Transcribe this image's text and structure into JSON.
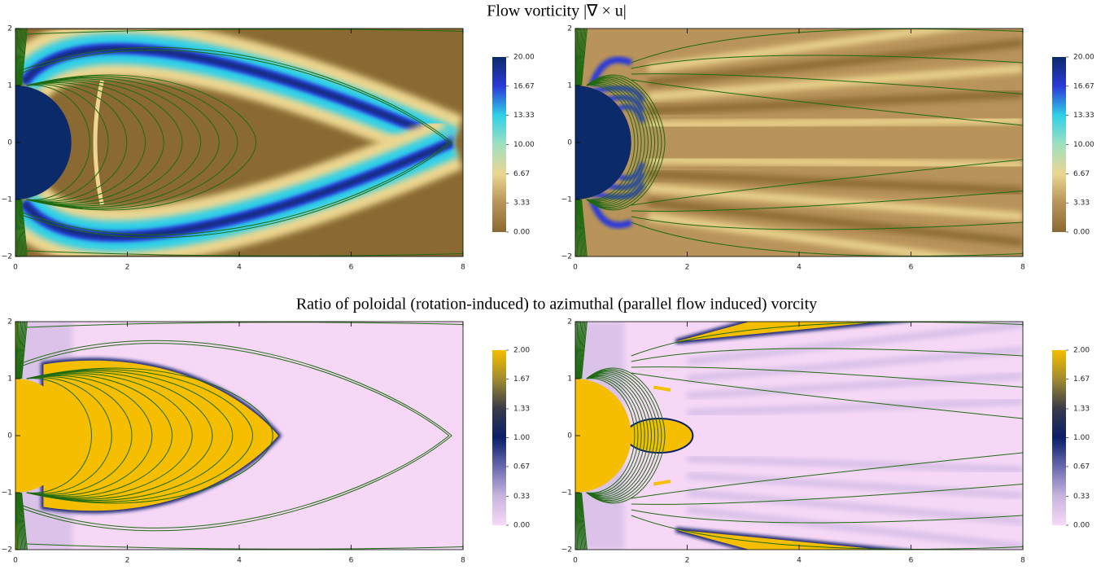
{
  "chart_data": [
    {
      "type": "heatmap",
      "title": "Flow vorticity |∇ × u|",
      "xlim": [
        0,
        8
      ],
      "xticks": [
        0,
        2,
        4,
        6,
        8
      ],
      "ylim": [
        -2,
        2
      ],
      "yticks": [
        {
          "value": -2,
          "label": "−2"
        },
        {
          "value": -1,
          "label": "−1"
        },
        0,
        1,
        2
      ],
      "clim": [
        0,
        20
      ],
      "cticks": [
        {
          "value": 0,
          "label": "0.00"
        },
        3.33,
        6.67,
        {
          "value": 10,
          "label": "10.00"
        },
        13.33,
        16.67,
        {
          "value": 20,
          "label": "20.00"
        }
      ],
      "colormap": [
        "#8a6a32",
        "#b8935a",
        "#ecd690",
        "#9fe0c0",
        "#2ed0e8",
        "#2a3ad8",
        "#0a2a6a"
      ]
    },
    {
      "type": "heatmap",
      "title": "Ratio of poloidal (rotation-induced) to azimuthal (parallel flow induced) vorcity",
      "xlim": [
        0,
        8
      ],
      "xticks": [
        0,
        2,
        4,
        6,
        8
      ],
      "ylim": [
        -2,
        2
      ],
      "yticks": [
        {
          "value": -2,
          "label": "−2"
        },
        {
          "value": -1,
          "label": "−1"
        },
        0,
        1,
        2
      ],
      "clim": [
        0,
        2
      ],
      "cticks": [
        {
          "value": 0,
          "label": "0.00"
        },
        0.33,
        0.67,
        {
          "value": 1,
          "label": "1.00"
        },
        1.33,
        1.67,
        {
          "value": 2,
          "label": "2.00"
        }
      ],
      "colormap": [
        "#f6d8f6",
        "#c8b4e0",
        "#6a6ab0",
        "#0a1f6a",
        "#3a3a48",
        "#a08a30",
        "#f6be00"
      ]
    }
  ]
}
